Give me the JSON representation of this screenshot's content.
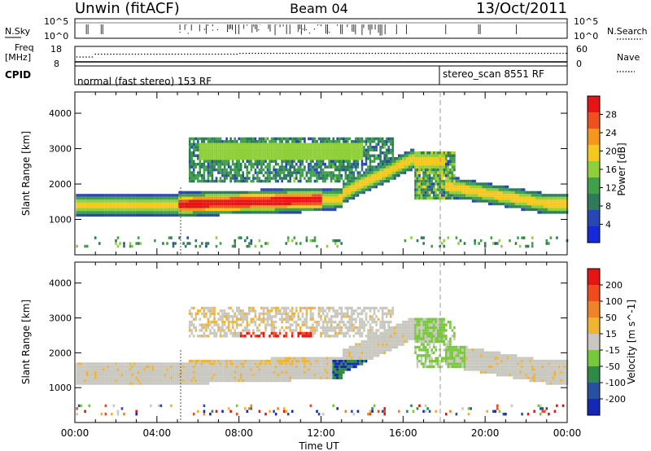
{
  "header": {
    "station": "Unwin (fitACF)",
    "beam": "Beam 04",
    "date": "13/Oct/2011"
  },
  "top_panels": {
    "nsky_label": "N.Sky",
    "nsky_ticks": [
      "10^5",
      "10^0"
    ],
    "nsearch_label": "N.Search",
    "freq_label_1": "Freq",
    "freq_label_2": "[MHz]",
    "freq_ticks": [
      "18",
      "8"
    ],
    "nave_label": "Nave",
    "nave_ticks": [
      "60",
      "0"
    ],
    "cpid_label": "CPID",
    "cpid_1": "normal (fast stereo) 153 RF",
    "cpid_2": "stereo_scan 8551 RF"
  },
  "colors": {
    "power_scale": [
      "#1428dc",
      "#2846b4",
      "#2f7a5a",
      "#3fa04a",
      "#8fcf3a",
      "#f5c81e",
      "#f5961e",
      "#f0501e",
      "#e61414"
    ],
    "velocity_scale": [
      "#1428b4",
      "#2850a0",
      "#2e8a46",
      "#78c83c",
      "#c8c8c0",
      "#f0b432",
      "#f08228",
      "#f04b1e",
      "#e61414"
    ]
  },
  "chart_data": [
    {
      "type": "heatmap",
      "panel": "power",
      "ylabel": "Slant Range [km]",
      "ylim": [
        0,
        4600
      ],
      "yticks": [
        "4000",
        "3000",
        "2000",
        "1000"
      ],
      "xlabel": "Time UT",
      "xlim": [
        "00:00",
        "24:00"
      ],
      "xticks": [
        "00:00",
        "04:00",
        "08:00",
        "12:00",
        "16:00",
        "20:00",
        "00:00"
      ],
      "colorbar_label": "Power [dB]",
      "colorbar_ticks": [
        "28",
        "24",
        "20",
        "16",
        "12",
        "8",
        "4"
      ]
    },
    {
      "type": "heatmap",
      "panel": "velocity",
      "ylabel": "Slant Range [km]",
      "ylim": [
        0,
        4600
      ],
      "yticks": [
        "4000",
        "3000",
        "2000",
        "1000"
      ],
      "xlabel": "Time UT",
      "xlim": [
        "00:00",
        "24:00"
      ],
      "xticks": [
        "00:00",
        "04:00",
        "08:00",
        "12:00",
        "16:00",
        "20:00",
        "00:00"
      ],
      "colorbar_label": "Velocity [m s^-1]",
      "colorbar_ticks": [
        "200",
        "100",
        "50",
        "15",
        "-15",
        "-50",
        "-100",
        "-200"
      ]
    }
  ]
}
